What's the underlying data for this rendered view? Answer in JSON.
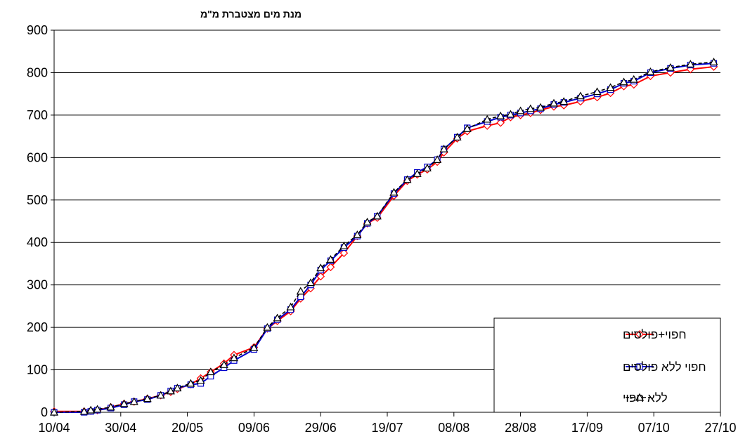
{
  "chart_data": {
    "type": "line",
    "title": "",
    "ylabel": "מנת מים מצטברת מ\"מ",
    "xlabel": "",
    "x_unit": "date",
    "xlim": [
      "10/04",
      "27/10"
    ],
    "ylim": [
      0,
      900
    ],
    "yticks": [
      0,
      100,
      200,
      300,
      400,
      500,
      600,
      700,
      800,
      900
    ],
    "xtick_labels": [
      "10/04",
      "30/04",
      "20/05",
      "09/06",
      "29/06",
      "19/07",
      "08/08",
      "28/08",
      "17/09",
      "07/10",
      "27/10"
    ],
    "grid": "horizontal",
    "legend_position": "bottom-right",
    "series": [
      {
        "name": "חפוי+פולסים",
        "color": "#ff0000",
        "marker": "diamond",
        "line": "solid",
        "x": [
          "10/04",
          "19/04",
          "21/04",
          "23/04",
          "27/04",
          "01/05",
          "04/05",
          "08/05",
          "12/05",
          "15/05",
          "17/05",
          "21/05",
          "24/05",
          "27/05",
          "31/05",
          "03/06",
          "09/06",
          "13/06",
          "16/06",
          "20/06",
          "23/06",
          "26/06",
          "29/06",
          "02/07",
          "06/07",
          "10/07",
          "13/07",
          "16/07",
          "21/07",
          "25/07",
          "28/07",
          "31/07",
          "03/08",
          "05/08",
          "09/08",
          "12/08",
          "18/08",
          "22/08",
          "25/08",
          "28/08",
          "31/08",
          "03/09",
          "07/09",
          "10/09",
          "15/09",
          "20/09",
          "24/09",
          "28/09",
          "01/10",
          "06/10",
          "12/10",
          "18/10",
          "25/10"
        ],
        "y": [
          2,
          2,
          3,
          5,
          12,
          20,
          25,
          32,
          40,
          48,
          55,
          66,
          80,
          95,
          115,
          135,
          153,
          197,
          215,
          238,
          268,
          292,
          320,
          342,
          375,
          415,
          445,
          458,
          510,
          545,
          560,
          572,
          590,
          612,
          645,
          662,
          675,
          682,
          695,
          700,
          705,
          712,
          720,
          723,
          732,
          742,
          752,
          768,
          772,
          792,
          800,
          808,
          814
        ]
      },
      {
        "name": "חפוי ללא פולסים",
        "color": "#0000cc",
        "marker": "square",
        "line": "solid",
        "x": [
          "10/04",
          "19/04",
          "21/04",
          "23/04",
          "27/04",
          "01/05",
          "04/05",
          "08/05",
          "12/05",
          "15/05",
          "17/05",
          "21/05",
          "24/05",
          "27/05",
          "31/05",
          "03/06",
          "09/06",
          "13/06",
          "16/06",
          "20/06",
          "23/06",
          "26/06",
          "29/06",
          "02/07",
          "06/07",
          "10/07",
          "13/07",
          "16/07",
          "21/07",
          "25/07",
          "28/07",
          "31/07",
          "03/08",
          "05/08",
          "09/08",
          "12/08",
          "18/08",
          "22/08",
          "25/08",
          "28/08",
          "31/08",
          "03/09",
          "07/09",
          "10/09",
          "15/09",
          "20/09",
          "24/09",
          "28/09",
          "01/10",
          "06/10",
          "12/10",
          "18/10",
          "25/10"
        ],
        "y": [
          0,
          0,
          2,
          5,
          10,
          18,
          25,
          30,
          40,
          50,
          57,
          65,
          68,
          85,
          105,
          122,
          148,
          197,
          218,
          242,
          272,
          300,
          335,
          357,
          388,
          415,
          445,
          462,
          515,
          548,
          565,
          578,
          595,
          620,
          648,
          670,
          685,
          695,
          700,
          705,
          710,
          715,
          725,
          730,
          740,
          750,
          760,
          775,
          780,
          800,
          810,
          818,
          822
        ]
      },
      {
        "name": "ללא חפוי",
        "color": "#000000",
        "marker": "triangle",
        "line": "dashed",
        "x": [
          "10/04",
          "19/04",
          "21/04",
          "23/04",
          "27/04",
          "01/05",
          "04/05",
          "08/05",
          "12/05",
          "15/05",
          "17/05",
          "21/05",
          "24/05",
          "27/05",
          "31/05",
          "03/06",
          "09/06",
          "13/06",
          "16/06",
          "20/06",
          "23/06",
          "26/06",
          "29/06",
          "02/07",
          "06/07",
          "10/07",
          "13/07",
          "16/07",
          "21/07",
          "25/07",
          "28/07",
          "31/07",
          "03/08",
          "05/08",
          "09/08",
          "12/08",
          "18/08",
          "22/08",
          "25/08",
          "28/08",
          "31/08",
          "03/09",
          "07/09",
          "10/09",
          "15/09",
          "20/09",
          "24/09",
          "28/09",
          "01/10",
          "06/10",
          "12/10",
          "18/10",
          "25/10"
        ],
        "y": [
          0,
          2,
          5,
          7,
          12,
          20,
          25,
          32,
          40,
          50,
          57,
          68,
          75,
          95,
          112,
          128,
          152,
          200,
          222,
          248,
          285,
          305,
          340,
          360,
          392,
          418,
          448,
          462,
          518,
          548,
          562,
          575,
          595,
          620,
          648,
          668,
          690,
          698,
          702,
          710,
          715,
          718,
          728,
          732,
          745,
          755,
          765,
          778,
          784,
          802,
          812,
          820,
          825
        ]
      }
    ]
  }
}
